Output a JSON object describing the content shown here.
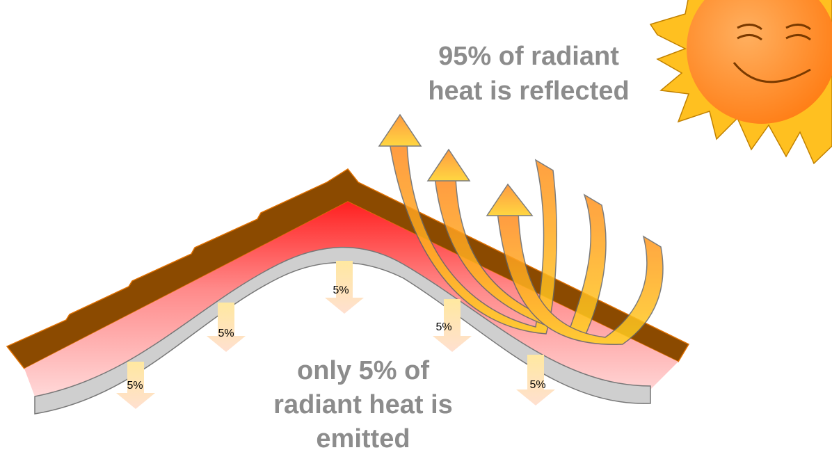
{
  "reflected_label": {
    "lines": [
      "95% of radiant",
      "heat is reflected"
    ]
  },
  "emitted_label": {
    "lines": [
      "only 5% of",
      "radiant heat is",
      "emitted"
    ]
  },
  "arrow_labels": [
    "5%",
    "5%",
    "5%",
    "5%",
    "5%"
  ]
}
